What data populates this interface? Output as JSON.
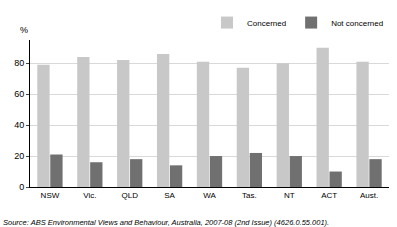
{
  "chart_data": {
    "type": "bar",
    "ylabel": "%",
    "source": "Source: ABS Environmental Views and Behaviour, Australia, 2007-08 (2nd Issue) (4626.0.55.001).",
    "categories": [
      "NSW",
      "Vic.",
      "QLD",
      "SA",
      "WA",
      "Tas.",
      "NT",
      "ACT",
      "Aust."
    ],
    "series": [
      {
        "name": "Concerned",
        "color": "#c8c8c8",
        "values": [
          79,
          84,
          82,
          86,
          81,
          77,
          80,
          90,
          81
        ]
      },
      {
        "name": "Not concerned",
        "color": "#707070",
        "values": [
          21,
          16,
          18,
          14,
          20,
          22,
          20,
          10,
          18
        ]
      }
    ],
    "ylim": [
      0,
      95
    ],
    "yticks": [
      0,
      20,
      40,
      60,
      80
    ],
    "grid": true,
    "legend": "top right"
  }
}
